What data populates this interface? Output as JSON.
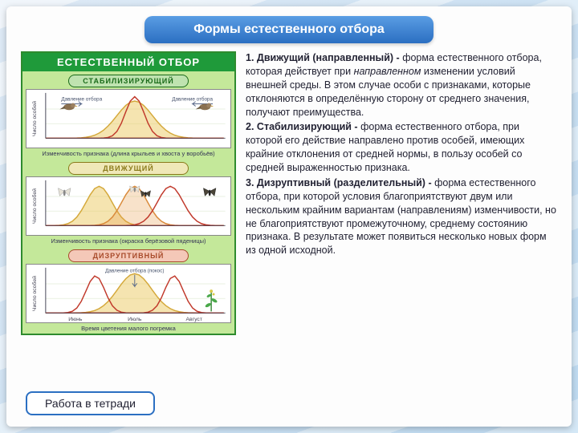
{
  "title": "Формы естественного отбора",
  "footer": "Работа в тетради",
  "diagram": {
    "main_header": "ЕСТЕСТВЕННЫЙ ОТБОР",
    "bg_color": "#c4e89a",
    "border_color": "#2e8b2e",
    "header_bg": "#1f9a3a",
    "sections": [
      {
        "key": "stab",
        "label": "СТАБИЛИЗИРУЮЩИЙ",
        "label_bg": "#bfe3b0",
        "label_color": "#1a6b1a",
        "y_caption": "Число особей",
        "caption": "Изменчивость признака (длина крыльев и хвоста у воробьёв)",
        "arrow_left": "Давление отбора",
        "arrow_right": "Давление отбора",
        "curves": [
          {
            "type": "bell",
            "center": 0.5,
            "width": 0.42,
            "height": 0.85,
            "stroke": "#d4a83a",
            "fill": "rgba(232,196,80,0.45)"
          },
          {
            "type": "bell",
            "center": 0.5,
            "width": 0.22,
            "height": 0.95,
            "stroke": "#c1392b",
            "fill": "none"
          }
        ],
        "icons": "birds"
      },
      {
        "key": "driv",
        "label": "ДВИЖУЩИЙ",
        "label_bg": "#f0e8b8",
        "label_color": "#8a7a1a",
        "y_caption": "Число особей",
        "caption": "Изменчивость признака (окраска берёзовой пяденицы)",
        "curves": [
          {
            "type": "bell",
            "center": 0.3,
            "width": 0.3,
            "height": 0.9,
            "stroke": "#d4a83a",
            "fill": "rgba(232,196,80,0.45)"
          },
          {
            "type": "bell",
            "center": 0.5,
            "width": 0.3,
            "height": 0.9,
            "stroke": "#d98a3a",
            "fill": "rgba(232,160,80,0.3)"
          },
          {
            "type": "bell",
            "center": 0.7,
            "width": 0.3,
            "height": 0.9,
            "stroke": "#c1392b",
            "fill": "none"
          }
        ],
        "icons": "moths"
      },
      {
        "key": "disr",
        "label": "ДИЗРУПТИВНЫЙ",
        "label_bg": "#f4c8b8",
        "label_color": "#a84a2a",
        "y_caption": "Число особей",
        "caption": "Время цветения малого погремка",
        "arrow_center": "Давление отбора (покос)",
        "x_ticks": [
          "Июнь",
          "Июль",
          "Август"
        ],
        "curves": [
          {
            "type": "bell",
            "center": 0.5,
            "width": 0.4,
            "height": 0.9,
            "stroke": "#d4a83a",
            "fill": "rgba(232,196,80,0.45)"
          },
          {
            "type": "bell",
            "center": 0.28,
            "width": 0.22,
            "height": 0.85,
            "stroke": "#c1392b",
            "fill": "none"
          },
          {
            "type": "bell",
            "center": 0.72,
            "width": 0.22,
            "height": 0.85,
            "stroke": "#c1392b",
            "fill": "none"
          }
        ],
        "icons": "plant"
      }
    ]
  },
  "definitions": [
    {
      "num": "1.",
      "term": "Движущий (направленный) - ",
      "body_before_italic": "форма естественного отбора, которая действует при ",
      "italic": "направленном",
      "body_after_italic": " изменении условий внешней среды. В этом случае особи с признаками, которые отклоняются в определённую сторону от среднего значения, получают преимущества."
    },
    {
      "num": "2.",
      "term": "Стабилизирующий - ",
      "body_before_italic": "форма естественного отбора, при которой его действие направлено против особей, имеющих крайние отклонения от средней нормы, в пользу особей со средней выраженностью признака.",
      "italic": "",
      "body_after_italic": ""
    },
    {
      "num": "3.",
      "term": "Дизруптивный (разделительный) - ",
      "body_before_italic": "форма естественного отбора, при которой условия благоприятствуют двум или нескольким крайним вариантам (направлениям) изменчивости, но не благоприятствуют промежуточному, среднему состоянию признака. В результате может появиться несколько новых форм из одной исходной.",
      "italic": "",
      "body_after_italic": ""
    }
  ],
  "style": {
    "title_gradient_top": "#5a9de4",
    "title_gradient_bottom": "#2b6fc2",
    "footer_border": "#2b6fc2",
    "text_fontsize": 12.5,
    "title_fontsize": 16
  }
}
